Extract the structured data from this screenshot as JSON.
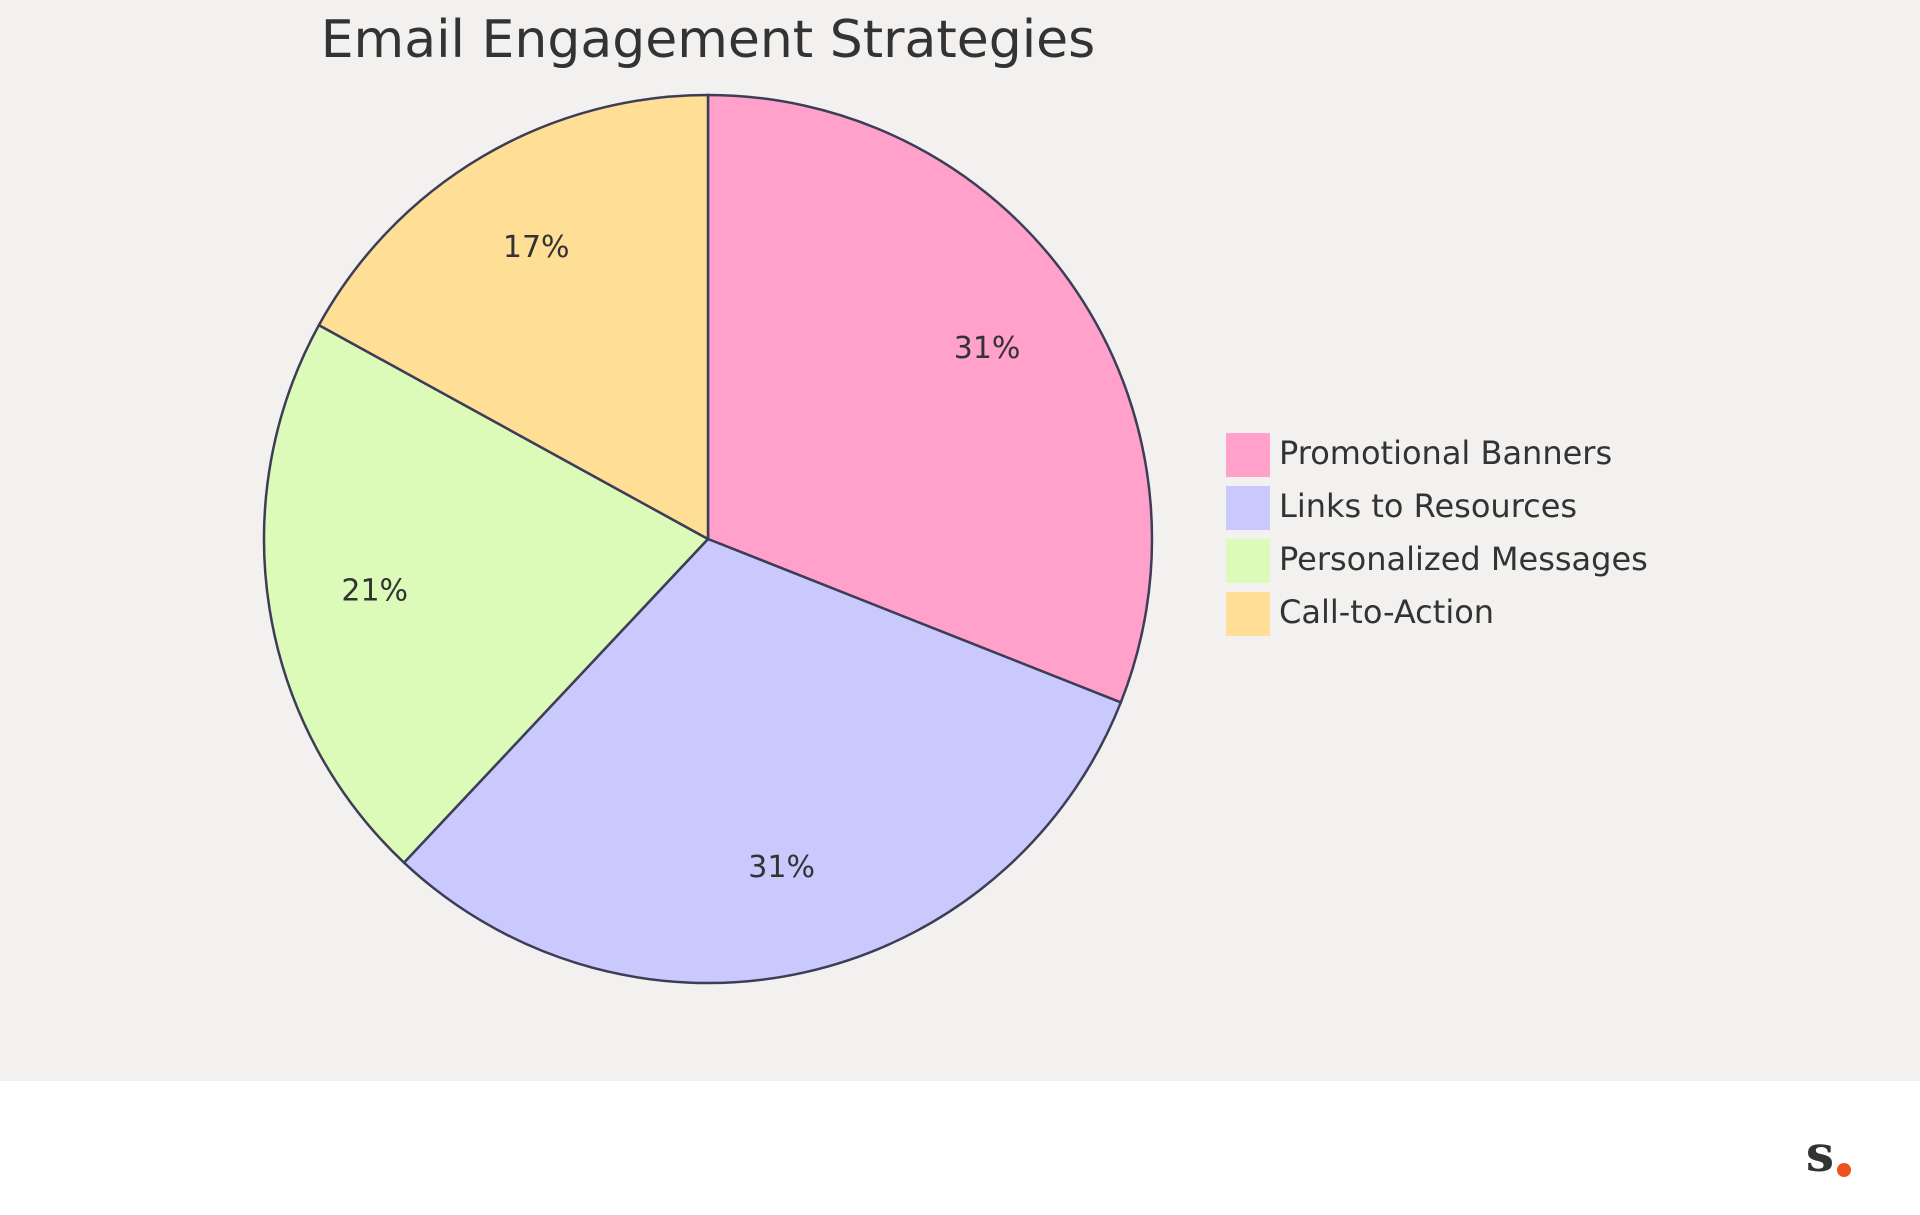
{
  "chart_data": {
    "type": "pie",
    "title": "Email Engagement Strategies",
    "categories": [
      "Promotional Banners",
      "Links to Resources",
      "Personalized Messages",
      "Call-to-Action"
    ],
    "values": [
      31,
      31,
      21,
      17
    ],
    "value_labels": [
      "31%",
      "31%",
      "21%",
      "17%"
    ],
    "colors": [
      "#FFA1CB",
      "#C9C9FE",
      "#DCFAB8",
      "#FFDE95"
    ],
    "legend": "right"
  },
  "logo": "s"
}
